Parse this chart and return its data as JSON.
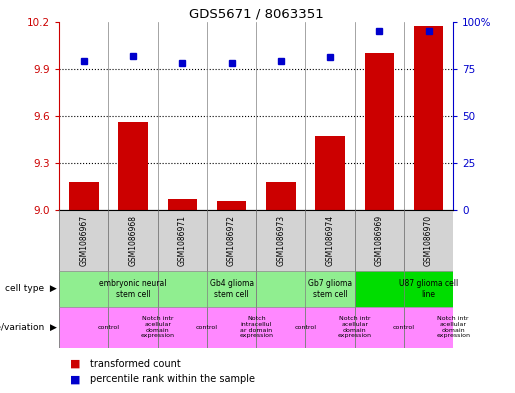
{
  "title": "GDS5671 / 8063351",
  "samples": [
    "GSM1086967",
    "GSM1086968",
    "GSM1086971",
    "GSM1086972",
    "GSM1086973",
    "GSM1086974",
    "GSM1086969",
    "GSM1086970"
  ],
  "red_values": [
    9.18,
    9.56,
    9.07,
    9.06,
    9.18,
    9.47,
    10.0,
    10.17
  ],
  "blue_values": [
    79,
    82,
    78,
    78,
    79,
    81,
    95,
    95
  ],
  "ylim_left": [
    9.0,
    10.2
  ],
  "ylim_right": [
    0,
    100
  ],
  "yticks_left": [
    9.0,
    9.3,
    9.6,
    9.9,
    10.2
  ],
  "yticks_right": [
    0,
    25,
    50,
    75,
    100
  ],
  "grid_values": [
    9.3,
    9.6,
    9.9
  ],
  "bar_color": "#cc0000",
  "dot_color": "#0000cc",
  "cell_type_groups": [
    {
      "label": "embryonic neural\nstem cell",
      "start": 0,
      "end": 2,
      "color": "#90ee90"
    },
    {
      "label": "Gb4 glioma\nstem cell",
      "start": 2,
      "end": 4,
      "color": "#90ee90"
    },
    {
      "label": "Gb7 glioma\nstem cell",
      "start": 4,
      "end": 6,
      "color": "#90ee90"
    },
    {
      "label": "U87 glioma cell\nline",
      "start": 6,
      "end": 8,
      "color": "#00dd00"
    }
  ],
  "genotype_groups": [
    {
      "label": "control",
      "start": 0,
      "end": 1,
      "color": "#ff88ff"
    },
    {
      "label": "Notch intr\nacellular\ndomain\nexpression",
      "start": 1,
      "end": 2,
      "color": "#ff88ff"
    },
    {
      "label": "control",
      "start": 2,
      "end": 3,
      "color": "#ff88ff"
    },
    {
      "label": "Notch\nintracellul\nar domain\nexpression",
      "start": 3,
      "end": 4,
      "color": "#ff88ff"
    },
    {
      "label": "control",
      "start": 4,
      "end": 5,
      "color": "#ff88ff"
    },
    {
      "label": "Notch intr\nacellular\ndomain\nexpression",
      "start": 5,
      "end": 6,
      "color": "#ff88ff"
    },
    {
      "label": "control",
      "start": 6,
      "end": 7,
      "color": "#ff88ff"
    },
    {
      "label": "Notch intr\nacellular\ndomain\nexpression",
      "start": 7,
      "end": 8,
      "color": "#ff88ff"
    }
  ],
  "left_label_color": "#cc0000",
  "right_label_color": "#0000cc",
  "bg_color": "#ffffff"
}
